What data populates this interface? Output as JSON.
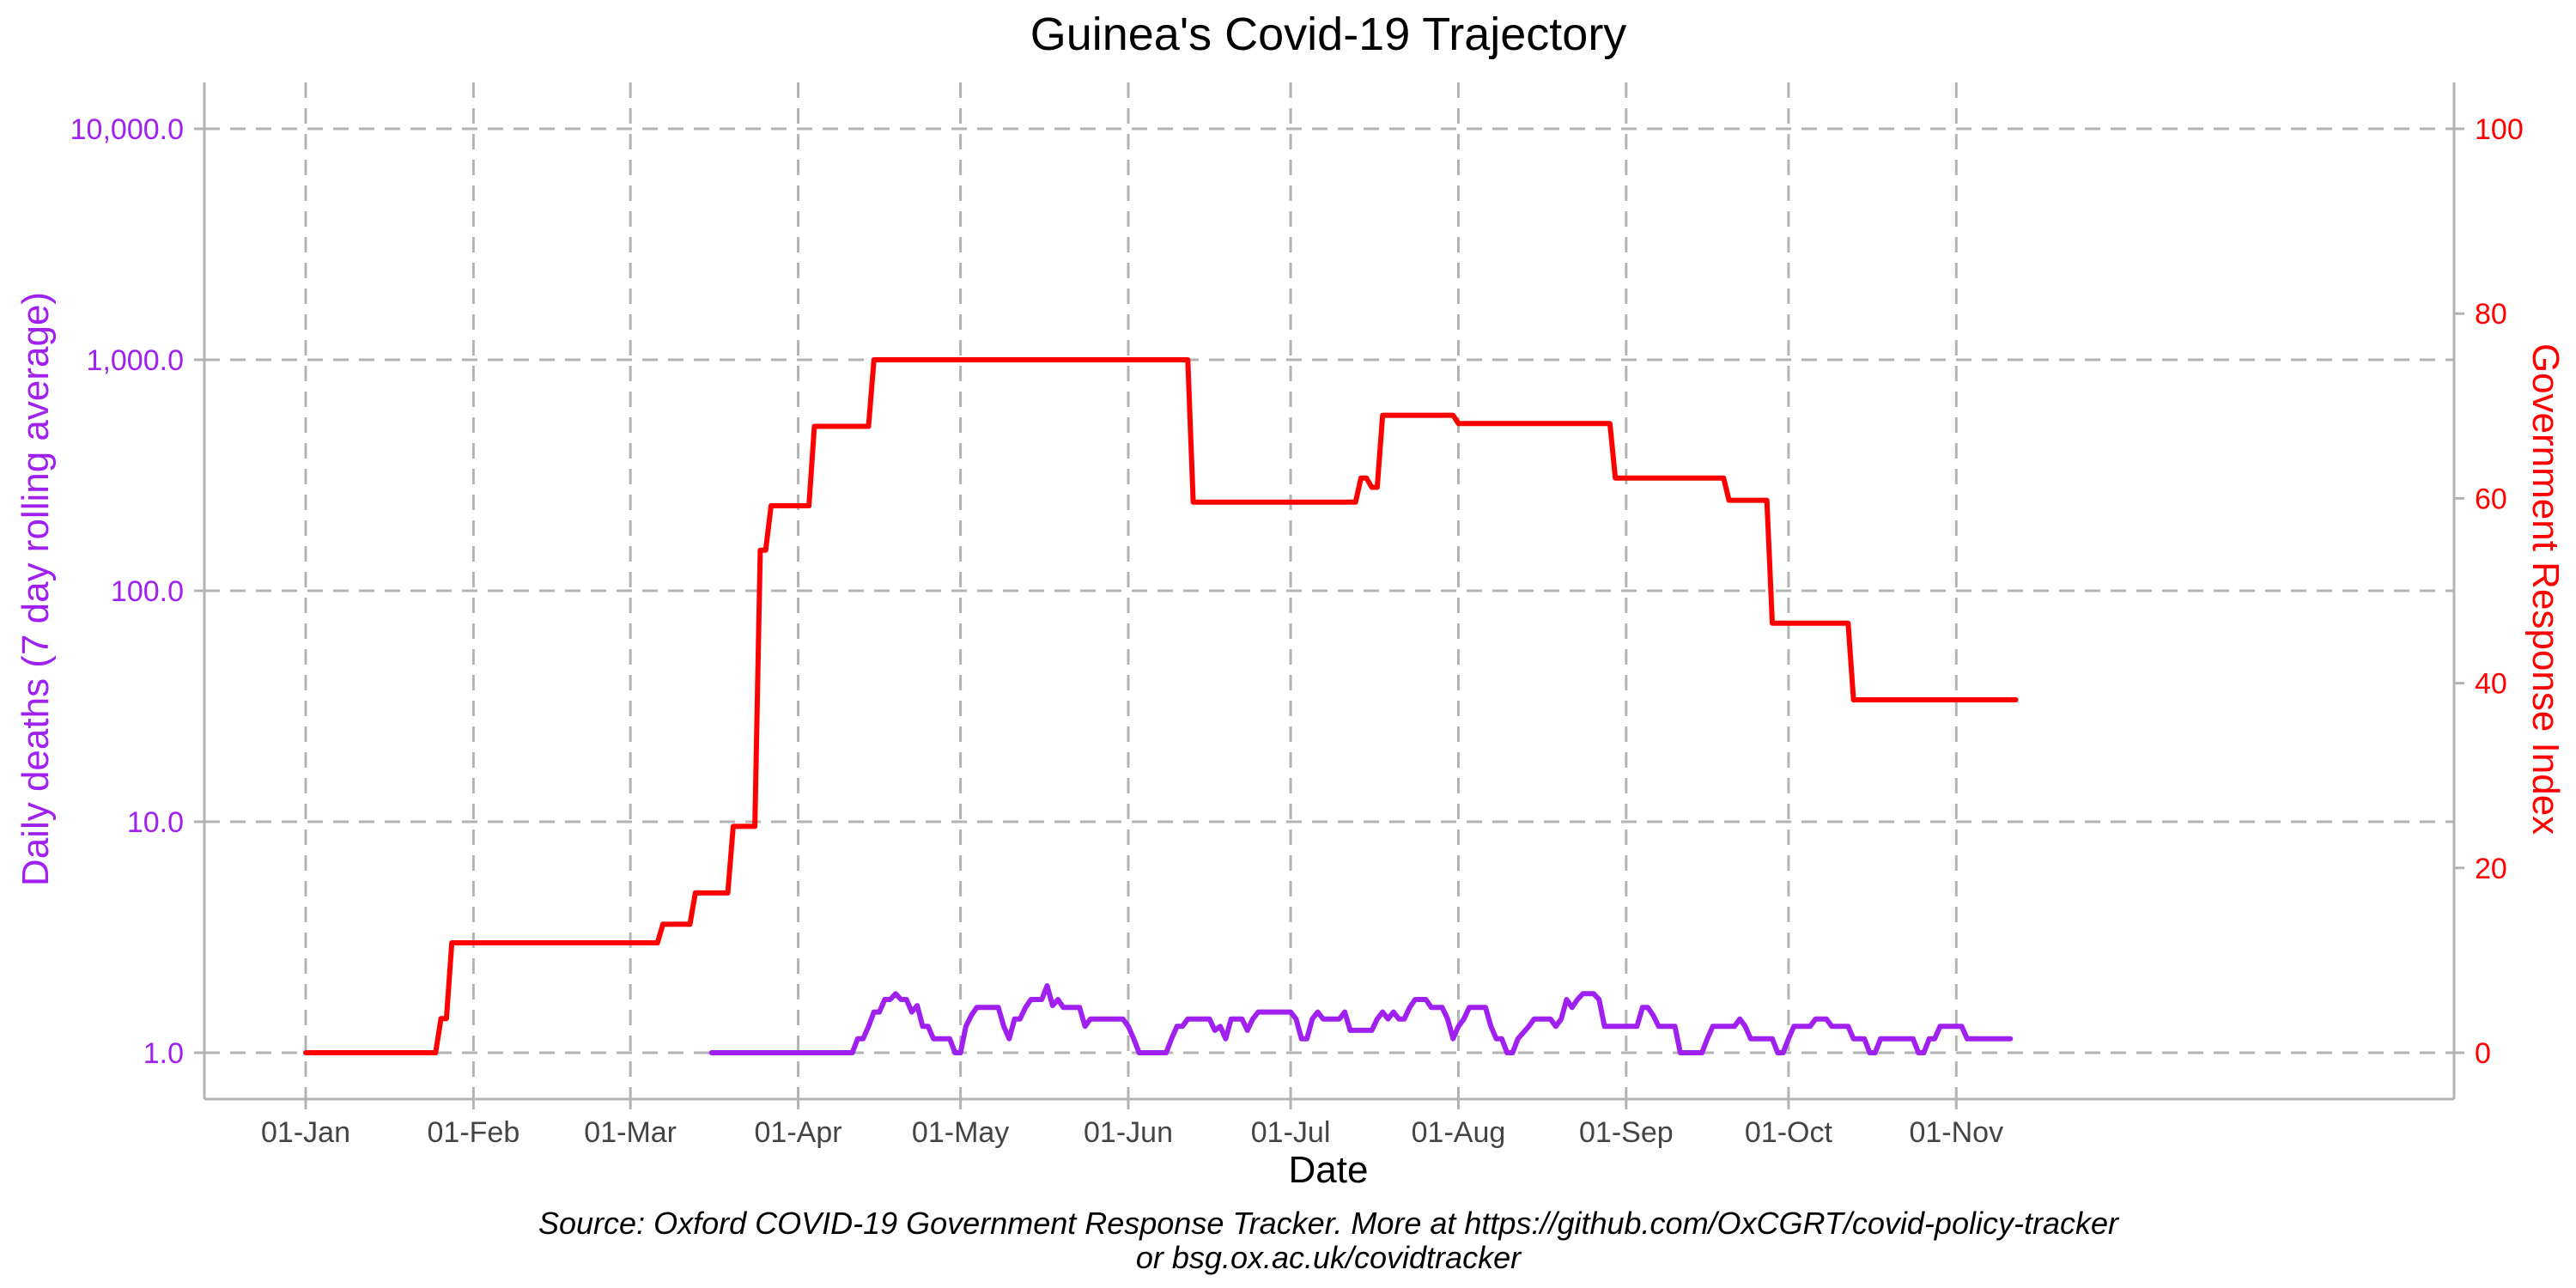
{
  "chart_data": {
    "type": "line",
    "title": "Guinea's Covid-19 Trajectory",
    "xlabel": "Date",
    "ylabel_left": "Daily deaths (7 day rolling average)",
    "ylabel_right": "Government Response Index",
    "left_scale": "log10",
    "left_ylim": [
      1,
      10000
    ],
    "right_ylim": [
      0,
      100
    ],
    "x_domain": [
      "2020-01-01",
      "2020-11-30"
    ],
    "x_ticks": [
      "2020-01-01",
      "2020-02-01",
      "2020-03-01",
      "2020-04-01",
      "2020-05-01",
      "2020-06-01",
      "2020-07-01",
      "2020-08-01",
      "2020-09-01",
      "2020-10-01",
      "2020-11-01"
    ],
    "x_tick_labels": [
      "01-Jan",
      "01-Feb",
      "01-Mar",
      "01-Apr",
      "01-May",
      "01-Jun",
      "01-Jul",
      "01-Aug",
      "01-Sep",
      "01-Oct",
      "01-Nov"
    ],
    "left_ticks": [
      1,
      10,
      100,
      1000,
      10000
    ],
    "left_tick_labels": [
      "1.0",
      "10.0",
      "100.0",
      "1,000.0",
      "10,000.0"
    ],
    "right_ticks": [
      0,
      20,
      40,
      60,
      80,
      100
    ],
    "right_tick_labels": [
      "0",
      "20",
      "40",
      "60",
      "80",
      "100"
    ],
    "grid": true,
    "colors": {
      "deaths": "#a020f0",
      "response": "#ff0000",
      "grid": "#b3b3b3",
      "tick_text": "#444444"
    },
    "series": [
      {
        "name": "Government Response Index",
        "axis": "right",
        "points": [
          [
            "2020-01-01",
            0
          ],
          [
            "2020-01-25",
            0
          ],
          [
            "2020-01-26",
            3.7
          ],
          [
            "2020-01-27",
            3.7
          ],
          [
            "2020-01-28",
            11.9
          ],
          [
            "2020-03-06",
            11.9
          ],
          [
            "2020-03-07",
            13.9
          ],
          [
            "2020-03-12",
            13.9
          ],
          [
            "2020-03-13",
            17.3
          ],
          [
            "2020-03-19",
            17.3
          ],
          [
            "2020-03-20",
            24.5
          ],
          [
            "2020-03-24",
            24.5
          ],
          [
            "2020-03-25",
            54.4
          ],
          [
            "2020-03-26",
            54.4
          ],
          [
            "2020-03-27",
            59.2
          ],
          [
            "2020-04-03",
            59.2
          ],
          [
            "2020-04-04",
            67.8
          ],
          [
            "2020-04-14",
            67.8
          ],
          [
            "2020-04-15",
            75
          ],
          [
            "2020-06-12",
            75
          ],
          [
            "2020-06-13",
            59.6
          ],
          [
            "2020-07-13",
            59.6
          ],
          [
            "2020-07-14",
            62.2
          ],
          [
            "2020-07-15",
            62.2
          ],
          [
            "2020-07-16",
            61.2
          ],
          [
            "2020-07-17",
            61.2
          ],
          [
            "2020-07-18",
            69
          ],
          [
            "2020-07-31",
            69
          ],
          [
            "2020-08-01",
            68.1
          ],
          [
            "2020-08-29",
            68.1
          ],
          [
            "2020-08-30",
            62.2
          ],
          [
            "2020-09-19",
            62.2
          ],
          [
            "2020-09-20",
            59.8
          ],
          [
            "2020-09-27",
            59.8
          ],
          [
            "2020-09-28",
            46.5
          ],
          [
            "2020-10-12",
            46.5
          ],
          [
            "2020-10-13",
            38.2
          ],
          [
            "2020-11-12",
            38.2
          ]
        ]
      },
      {
        "name": "Daily deaths (7 day rolling average)",
        "axis": "left",
        "points": [
          [
            "2020-03-16",
            1
          ],
          [
            "2020-04-11",
            1
          ],
          [
            "2020-04-12",
            1.15
          ],
          [
            "2020-04-13",
            1.15
          ],
          [
            "2020-04-14",
            1.3
          ],
          [
            "2020-04-15",
            1.5
          ],
          [
            "2020-04-16",
            1.5
          ],
          [
            "2020-04-17",
            1.7
          ],
          [
            "2020-04-18",
            1.7
          ],
          [
            "2020-04-19",
            1.8
          ],
          [
            "2020-04-20",
            1.7
          ],
          [
            "2020-04-21",
            1.7
          ],
          [
            "2020-04-22",
            1.5
          ],
          [
            "2020-04-23",
            1.6
          ],
          [
            "2020-04-24",
            1.3
          ],
          [
            "2020-04-25",
            1.3
          ],
          [
            "2020-04-26",
            1.15
          ],
          [
            "2020-04-27",
            1.15
          ],
          [
            "2020-04-28",
            1.15
          ],
          [
            "2020-04-29",
            1.15
          ],
          [
            "2020-04-30",
            1
          ],
          [
            "2020-05-01",
            1
          ],
          [
            "2020-05-02",
            1.3
          ],
          [
            "2020-05-03",
            1.45
          ],
          [
            "2020-05-04",
            1.57
          ],
          [
            "2020-05-08",
            1.57
          ],
          [
            "2020-05-09",
            1.3
          ],
          [
            "2020-05-10",
            1.15
          ],
          [
            "2020-05-11",
            1.4
          ],
          [
            "2020-05-12",
            1.4
          ],
          [
            "2020-05-13",
            1.57
          ],
          [
            "2020-05-14",
            1.7
          ],
          [
            "2020-05-15",
            1.7
          ],
          [
            "2020-05-16",
            1.7
          ],
          [
            "2020-05-17",
            1.95
          ],
          [
            "2020-05-18",
            1.6
          ],
          [
            "2020-05-19",
            1.7
          ],
          [
            "2020-05-20",
            1.57
          ],
          [
            "2020-05-23",
            1.57
          ],
          [
            "2020-05-24",
            1.3
          ],
          [
            "2020-05-25",
            1.4
          ],
          [
            "2020-05-31",
            1.4
          ],
          [
            "2020-06-01",
            1.3
          ],
          [
            "2020-06-02",
            1.15
          ],
          [
            "2020-06-03",
            1
          ],
          [
            "2020-06-08",
            1
          ],
          [
            "2020-06-09",
            1.15
          ],
          [
            "2020-06-10",
            1.3
          ],
          [
            "2020-06-11",
            1.3
          ],
          [
            "2020-06-12",
            1.4
          ],
          [
            "2020-06-16",
            1.4
          ],
          [
            "2020-06-17",
            1.25
          ],
          [
            "2020-06-18",
            1.3
          ],
          [
            "2020-06-19",
            1.15
          ],
          [
            "2020-06-20",
            1.4
          ],
          [
            "2020-06-22",
            1.4
          ],
          [
            "2020-06-23",
            1.25
          ],
          [
            "2020-06-24",
            1.4
          ],
          [
            "2020-06-25",
            1.5
          ],
          [
            "2020-07-01",
            1.5
          ],
          [
            "2020-07-02",
            1.4
          ],
          [
            "2020-07-03",
            1.15
          ],
          [
            "2020-07-04",
            1.15
          ],
          [
            "2020-07-05",
            1.4
          ],
          [
            "2020-07-06",
            1.5
          ],
          [
            "2020-07-07",
            1.4
          ],
          [
            "2020-07-10",
            1.4
          ],
          [
            "2020-07-11",
            1.5
          ],
          [
            "2020-07-12",
            1.25
          ],
          [
            "2020-07-16",
            1.25
          ],
          [
            "2020-07-17",
            1.4
          ],
          [
            "2020-07-18",
            1.5
          ],
          [
            "2020-07-19",
            1.4
          ],
          [
            "2020-07-20",
            1.5
          ],
          [
            "2020-07-21",
            1.4
          ],
          [
            "2020-07-22",
            1.4
          ],
          [
            "2020-07-23",
            1.57
          ],
          [
            "2020-07-24",
            1.7
          ],
          [
            "2020-07-26",
            1.7
          ],
          [
            "2020-07-27",
            1.57
          ],
          [
            "2020-07-29",
            1.57
          ],
          [
            "2020-07-30",
            1.4
          ],
          [
            "2020-07-31",
            1.15
          ],
          [
            "2020-08-01",
            1.3
          ],
          [
            "2020-08-02",
            1.4
          ],
          [
            "2020-08-03",
            1.57
          ],
          [
            "2020-08-06",
            1.57
          ],
          [
            "2020-08-07",
            1.3
          ],
          [
            "2020-08-08",
            1.15
          ],
          [
            "2020-08-09",
            1.15
          ],
          [
            "2020-08-10",
            1
          ],
          [
            "2020-08-11",
            1
          ],
          [
            "2020-08-12",
            1.15
          ],
          [
            "2020-08-14",
            1.3
          ],
          [
            "2020-08-15",
            1.4
          ],
          [
            "2020-08-18",
            1.4
          ],
          [
            "2020-08-19",
            1.3
          ],
          [
            "2020-08-20",
            1.4
          ],
          [
            "2020-08-21",
            1.7
          ],
          [
            "2020-08-22",
            1.57
          ],
          [
            "2020-08-23",
            1.7
          ],
          [
            "2020-08-24",
            1.8
          ],
          [
            "2020-08-26",
            1.8
          ],
          [
            "2020-08-27",
            1.7
          ],
          [
            "2020-08-28",
            1.3
          ],
          [
            "2020-09-03",
            1.3
          ],
          [
            "2020-09-04",
            1.57
          ],
          [
            "2020-09-05",
            1.57
          ],
          [
            "2020-09-06",
            1.45
          ],
          [
            "2020-09-07",
            1.3
          ],
          [
            "2020-09-10",
            1.3
          ],
          [
            "2020-09-11",
            1
          ],
          [
            "2020-09-15",
            1
          ],
          [
            "2020-09-16",
            1.15
          ],
          [
            "2020-09-17",
            1.3
          ],
          [
            "2020-09-21",
            1.3
          ],
          [
            "2020-09-22",
            1.4
          ],
          [
            "2020-09-23",
            1.3
          ],
          [
            "2020-09-24",
            1.15
          ],
          [
            "2020-09-28",
            1.15
          ],
          [
            "2020-09-29",
            1
          ],
          [
            "2020-09-30",
            1
          ],
          [
            "2020-10-01",
            1.15
          ],
          [
            "2020-10-02",
            1.3
          ],
          [
            "2020-10-05",
            1.3
          ],
          [
            "2020-10-06",
            1.4
          ],
          [
            "2020-10-08",
            1.4
          ],
          [
            "2020-10-09",
            1.3
          ],
          [
            "2020-10-12",
            1.3
          ],
          [
            "2020-10-13",
            1.15
          ],
          [
            "2020-10-15",
            1.15
          ],
          [
            "2020-10-16",
            1
          ],
          [
            "2020-10-17",
            1
          ],
          [
            "2020-10-18",
            1.15
          ],
          [
            "2020-10-24",
            1.15
          ],
          [
            "2020-10-25",
            1
          ],
          [
            "2020-10-26",
            1
          ],
          [
            "2020-10-27",
            1.15
          ],
          [
            "2020-10-28",
            1.15
          ],
          [
            "2020-10-29",
            1.3
          ],
          [
            "2020-11-02",
            1.3
          ],
          [
            "2020-11-03",
            1.15
          ],
          [
            "2020-11-11",
            1.15
          ]
        ]
      }
    ],
    "caption_lines": [
      "Source: Oxford COVID-19 Government Response Tracker. More at https://github.com/OxCGRT/covid-policy-tracker",
      "or bsg.ox.ac.uk/covidtracker"
    ]
  }
}
